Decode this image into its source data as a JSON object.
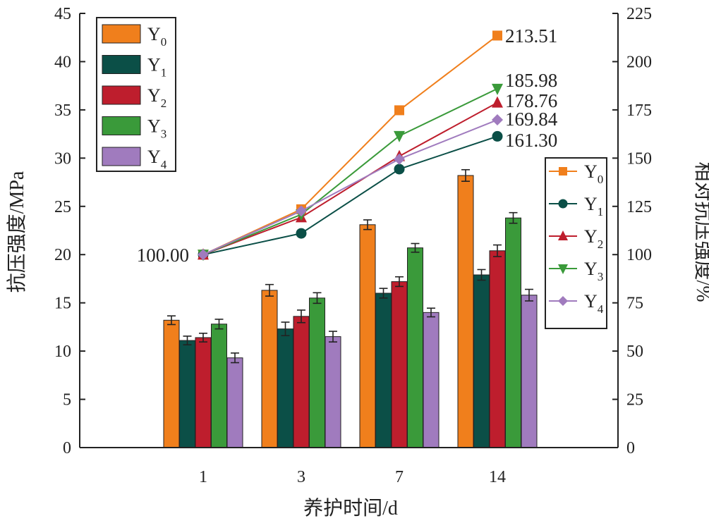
{
  "chart_data": {
    "type": "bar",
    "categories": [
      "1",
      "3",
      "7",
      "14"
    ],
    "xlabel": "养护时间/d",
    "ylabel": "抗压强度/MPa",
    "y2label": "相对抗压强度/%",
    "ylim": [
      0,
      45
    ],
    "y2lim": [
      0,
      225
    ],
    "yticks": [
      "0",
      "5",
      "10",
      "15",
      "20",
      "25",
      "30",
      "35",
      "40",
      "45"
    ],
    "y2ticks": [
      "0",
      "25",
      "50",
      "75",
      "100",
      "125",
      "150",
      "175",
      "200",
      "225"
    ],
    "bar_series": [
      {
        "legend_base": "Y",
        "legend_sub": "0",
        "color": "#F07F1C",
        "values": [
          13.2,
          16.3,
          23.1,
          28.2
        ],
        "errors": [
          0.45,
          0.6,
          0.5,
          0.6
        ]
      },
      {
        "legend_base": "Y",
        "legend_sub": "1",
        "color": "#0B4F47",
        "values": [
          11.1,
          12.3,
          16.0,
          17.9
        ],
        "errors": [
          0.45,
          0.7,
          0.5,
          0.55
        ]
      },
      {
        "legend_base": "Y",
        "legend_sub": "2",
        "color": "#BE1E2D",
        "values": [
          11.4,
          13.6,
          17.2,
          20.4
        ],
        "errors": [
          0.45,
          0.65,
          0.5,
          0.6
        ]
      },
      {
        "legend_base": "Y",
        "legend_sub": "3",
        "color": "#3A9A3A",
        "values": [
          12.8,
          15.5,
          20.7,
          23.8
        ],
        "errors": [
          0.5,
          0.55,
          0.45,
          0.55
        ]
      },
      {
        "legend_base": "Y",
        "legend_sub": "4",
        "color": "#A07BBE",
        "values": [
          9.3,
          11.5,
          14.0,
          15.8
        ],
        "errors": [
          0.5,
          0.55,
          0.45,
          0.6
        ]
      }
    ],
    "line_series": [
      {
        "legend_base": "Y",
        "legend_sub": "0",
        "color": "#F07F1C",
        "marker": "square",
        "values": [
          100.0,
          123.5,
          174.8,
          213.51
        ]
      },
      {
        "legend_base": "Y",
        "legend_sub": "1",
        "color": "#0B4F47",
        "marker": "circle",
        "values": [
          100.0,
          111.0,
          144.3,
          161.3
        ]
      },
      {
        "legend_base": "Y",
        "legend_sub": "2",
        "color": "#BE1E2D",
        "marker": "triangle-up",
        "values": [
          100.0,
          119.3,
          151.0,
          178.76
        ]
      },
      {
        "legend_base": "Y",
        "legend_sub": "3",
        "color": "#3A9A3A",
        "marker": "triangle-down",
        "values": [
          100.0,
          120.8,
          161.5,
          185.98
        ]
      },
      {
        "legend_base": "Y",
        "legend_sub": "4",
        "color": "#A07BBE",
        "marker": "diamond",
        "values": [
          100.0,
          122.6,
          149.5,
          169.84
        ]
      }
    ],
    "annotations": [
      "100.00",
      "213.51",
      "185.98",
      "178.76",
      "169.84",
      "161.30"
    ]
  }
}
